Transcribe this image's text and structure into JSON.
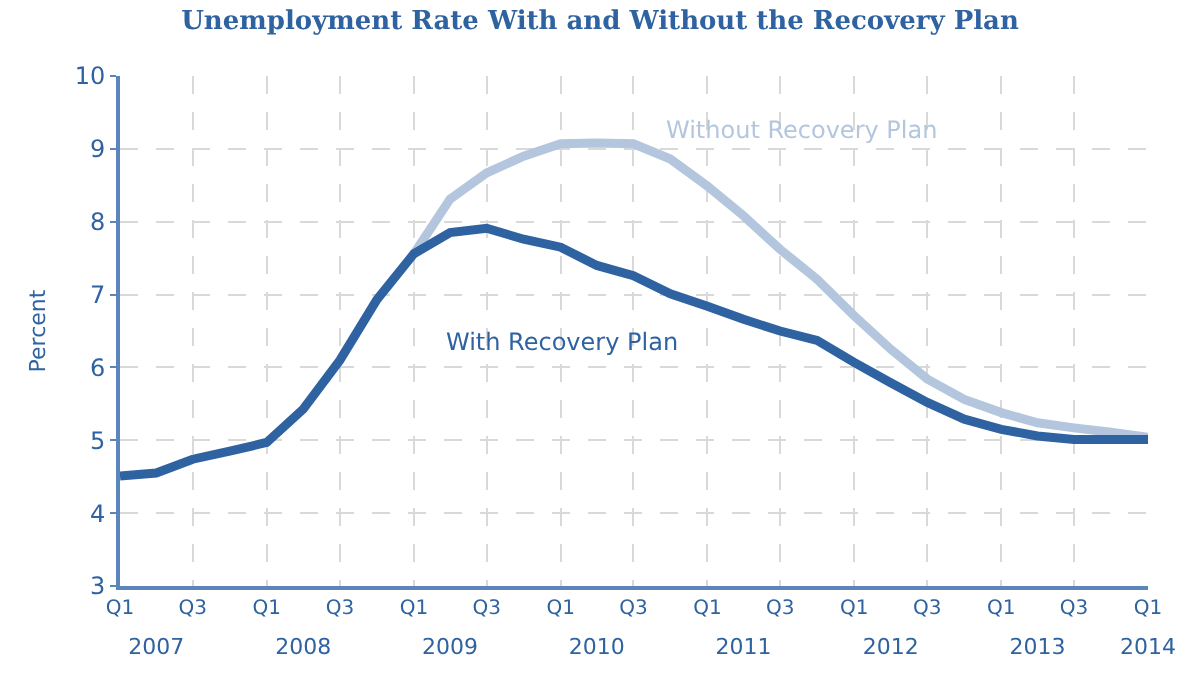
{
  "chart_data": {
    "type": "line",
    "title": "Unemployment Rate With and Without the Recovery Plan",
    "ylabel": "Percent",
    "x": [
      "2007-01",
      "2007-04",
      "2007-07",
      "2007-10",
      "2008-01",
      "2008-04",
      "2008-07",
      "2008-10",
      "2009-01",
      "2009-04",
      "2009-07",
      "2009-10",
      "2010-01",
      "2010-04",
      "2010-07",
      "2010-10",
      "2011-01",
      "2011-04",
      "2011-07",
      "2011-10",
      "2012-01",
      "2012-04",
      "2012-07",
      "2012-10",
      "2013-01",
      "2013-04",
      "2013-07",
      "2013-10",
      "2014-01"
    ],
    "series": [
      {
        "name": "Without Recovery Plan",
        "color": "#b3c6de",
        "values": [
          null,
          null,
          null,
          null,
          null,
          null,
          null,
          null,
          7.56,
          8.31,
          8.67,
          8.9,
          9.07,
          9.08,
          9.07,
          8.86,
          8.49,
          8.08,
          7.62,
          7.21,
          6.71,
          6.25,
          5.84,
          5.56,
          5.38,
          5.24,
          5.17,
          5.11,
          5.04
        ]
      },
      {
        "name": "With Recovery Plan",
        "color": "#2e62a0",
        "values": [
          4.51,
          4.55,
          4.74,
          4.85,
          4.97,
          5.43,
          6.1,
          6.93,
          7.56,
          7.85,
          7.91,
          7.76,
          7.65,
          7.4,
          7.26,
          7.01,
          6.84,
          6.66,
          6.5,
          6.37,
          6.07,
          5.79,
          5.52,
          5.29,
          5.15,
          5.06,
          5.01,
          5.01,
          5.01
        ]
      }
    ],
    "xlim": [
      "2007-01",
      "2014-01"
    ],
    "xticks": [
      {
        "value": "2007-01",
        "label": "Q1"
      },
      {
        "value": "2007-07",
        "label": "Q3"
      },
      {
        "value": "2008-01",
        "label": "Q1"
      },
      {
        "value": "2008-07",
        "label": "Q3"
      },
      {
        "value": "2009-01",
        "label": "Q1"
      },
      {
        "value": "2009-07",
        "label": "Q3"
      },
      {
        "value": "2010-01",
        "label": "Q1"
      },
      {
        "value": "2010-07",
        "label": "Q3"
      },
      {
        "value": "2011-01",
        "label": "Q1"
      },
      {
        "value": "2011-07",
        "label": "Q3"
      },
      {
        "value": "2012-01",
        "label": "Q1"
      },
      {
        "value": "2012-07",
        "label": "Q3"
      },
      {
        "value": "2013-01",
        "label": "Q1"
      },
      {
        "value": "2013-07",
        "label": "Q3"
      },
      {
        "value": "2014-01",
        "label": "Q1"
      }
    ],
    "ylim": [
      3,
      10
    ],
    "yticks": [
      3,
      4,
      5,
      6,
      7,
      8,
      9,
      10
    ],
    "x2lim": [
      "2007-01",
      "2014-01"
    ],
    "x2ticks": [
      {
        "value": "2007-04",
        "label": "2007"
      },
      {
        "value": "2008-04",
        "label": "2008"
      },
      {
        "value": "2009-04",
        "label": "2009"
      },
      {
        "value": "2010-04",
        "label": "2010"
      },
      {
        "value": "2011-04",
        "label": "2011"
      },
      {
        "value": "2012-04",
        "label": "2012"
      },
      {
        "value": "2013-04",
        "label": "2013"
      },
      {
        "value": "2014-01",
        "label": "2014"
      }
    ],
    "grid": true,
    "legend": false,
    "marker": "none",
    "line_style": "solid"
  }
}
